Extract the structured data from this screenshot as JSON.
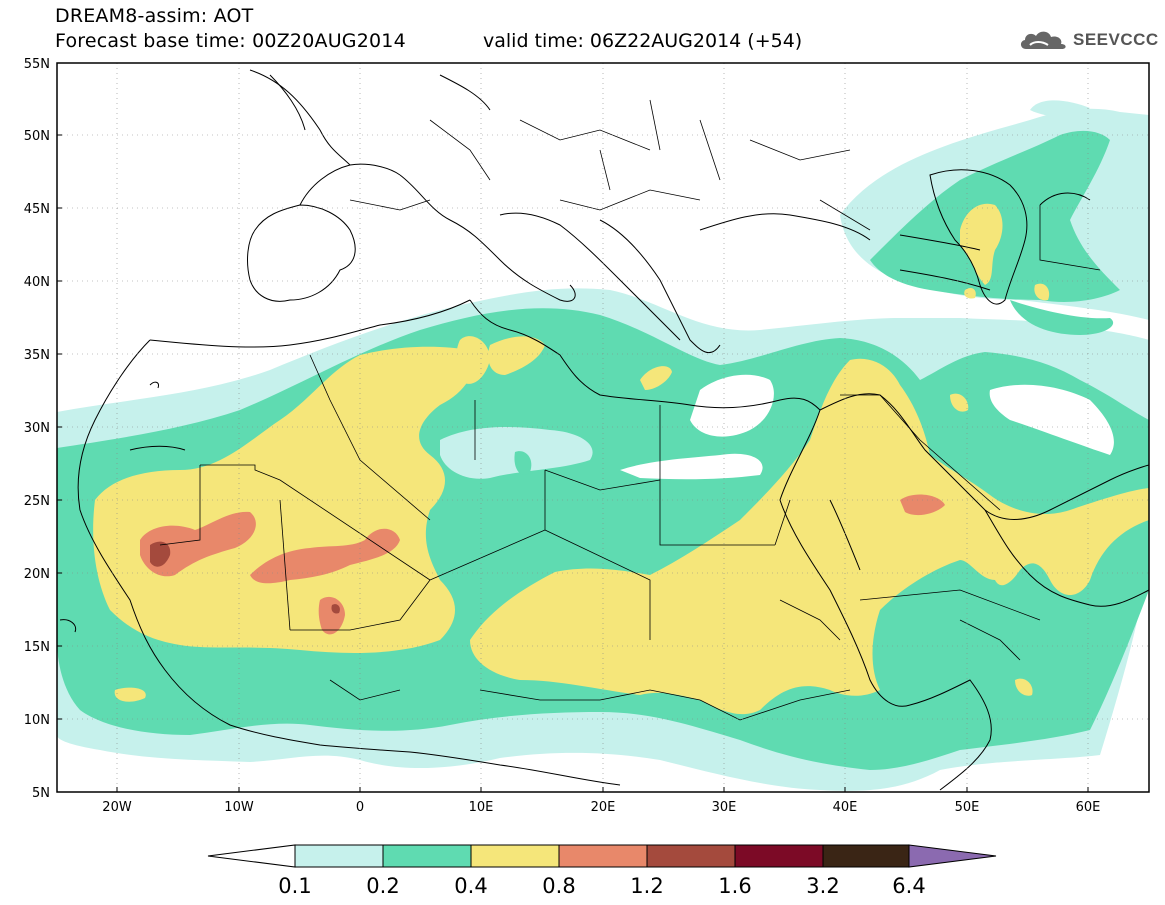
{
  "header": {
    "title": "DREAM8-assim: AOT",
    "base_time": "Forecast base time: 00Z20AUG2014",
    "valid_time": "valid time: 06Z22AUG2014 (+54)"
  },
  "logo": {
    "text": "SEEVCCC",
    "icon": "cloud-icon"
  },
  "map": {
    "lon_range": [
      -25,
      65
    ],
    "lat_range": [
      5,
      55
    ],
    "lat_labels": [
      "5N",
      "10N",
      "15N",
      "20N",
      "25N",
      "30N",
      "35N",
      "40N",
      "45N",
      "50N",
      "55N"
    ],
    "lon_labels": [
      "20W",
      "10W",
      "0",
      "10E",
      "20E",
      "30E",
      "40E",
      "50E",
      "60E"
    ]
  },
  "colorbar": {
    "colors": [
      "#ffffff",
      "#c6f1ec",
      "#5fdbb1",
      "#f5e67a",
      "#e8886a",
      "#a44a3d",
      "#7c0a26",
      "#3a2515",
      "#8b6ab0"
    ],
    "labels": [
      "0.1",
      "0.2",
      "0.4",
      "0.8",
      "1.2",
      "1.6",
      "3.2",
      "6.4"
    ]
  }
}
